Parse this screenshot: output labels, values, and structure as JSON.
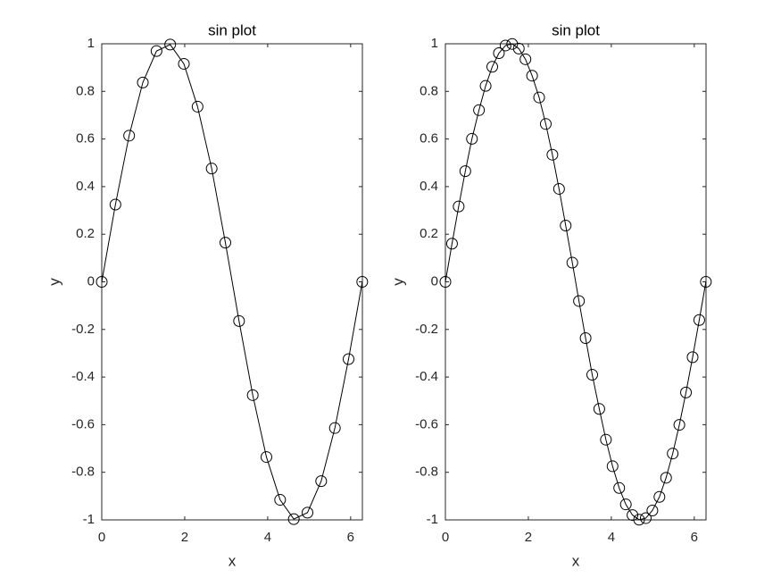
{
  "chart_data": [
    {
      "type": "line",
      "title": "sin plot",
      "x_label": "x",
      "y_label": "y",
      "x": [
        0,
        0.33,
        0.66,
        0.99,
        1.32,
        1.65,
        1.98,
        2.31,
        2.65,
        2.98,
        3.31,
        3.64,
        3.97,
        4.3,
        4.63,
        4.96,
        5.29,
        5.62,
        5.95,
        6.28
      ],
      "series": [
        {
          "color": "#000000",
          "marker": "circle",
          "values": [
            0,
            0.3247,
            0.6142,
            0.8372,
            0.9694,
            0.9966,
            0.9158,
            0.7357,
            0.4759,
            0.1646,
            -0.1646,
            -0.4759,
            -0.7357,
            -0.9158,
            -0.9966,
            -0.9694,
            -0.8372,
            -0.6142,
            -0.3247,
            0
          ]
        }
      ],
      "xlim": [
        0,
        6.2832
      ],
      "ylim": [
        -1,
        1
      ],
      "xticks": [
        0,
        2,
        4,
        6
      ],
      "yticks": [
        -1,
        -0.8,
        -0.6,
        -0.4,
        -0.2,
        0,
        0.2,
        0.4,
        0.6,
        0.8,
        1
      ],
      "grid": false
    },
    {
      "type": "line",
      "title": "sin plot",
      "x_label": "x",
      "y_label": "y",
      "x": [
        0,
        0.16,
        0.32,
        0.48,
        0.64,
        0.81,
        0.97,
        1.13,
        1.29,
        1.45,
        1.61,
        1.77,
        1.93,
        2.09,
        2.26,
        2.42,
        2.58,
        2.74,
        2.9,
        3.06,
        3.22,
        3.38,
        3.54,
        3.71,
        3.87,
        4.03,
        4.19,
        4.35,
        4.51,
        4.67,
        4.83,
        4.99,
        5.16,
        5.32,
        5.48,
        5.64,
        5.8,
        5.96,
        6.12,
        6.28
      ],
      "series": [
        {
          "color": "#000000",
          "marker": "circle",
          "values": [
            0,
            0.1604,
            0.3167,
            0.4647,
            0.6007,
            0.7212,
            0.823,
            0.9035,
            0.9605,
            0.9927,
            0.9992,
            0.9797,
            0.935,
            0.866,
            0.7746,
            0.663,
            0.5339,
            0.3904,
            0.2365,
            0.0805,
            -0.0805,
            -0.2365,
            -0.3904,
            -0.5339,
            -0.663,
            -0.7746,
            -0.866,
            -0.935,
            -0.9797,
            -0.9992,
            -0.9927,
            -0.9605,
            -0.9035,
            -0.823,
            -0.7212,
            -0.6007,
            -0.4647,
            -0.3167,
            -0.1604,
            0
          ]
        }
      ],
      "xlim": [
        0,
        6.2832
      ],
      "ylim": [
        -1,
        1
      ],
      "xticks": [
        0,
        2,
        4,
        6
      ],
      "yticks": [
        -1,
        -0.8,
        -0.6,
        -0.4,
        -0.2,
        0,
        0.2,
        0.4,
        0.6,
        0.8,
        1
      ],
      "grid": false
    }
  ]
}
